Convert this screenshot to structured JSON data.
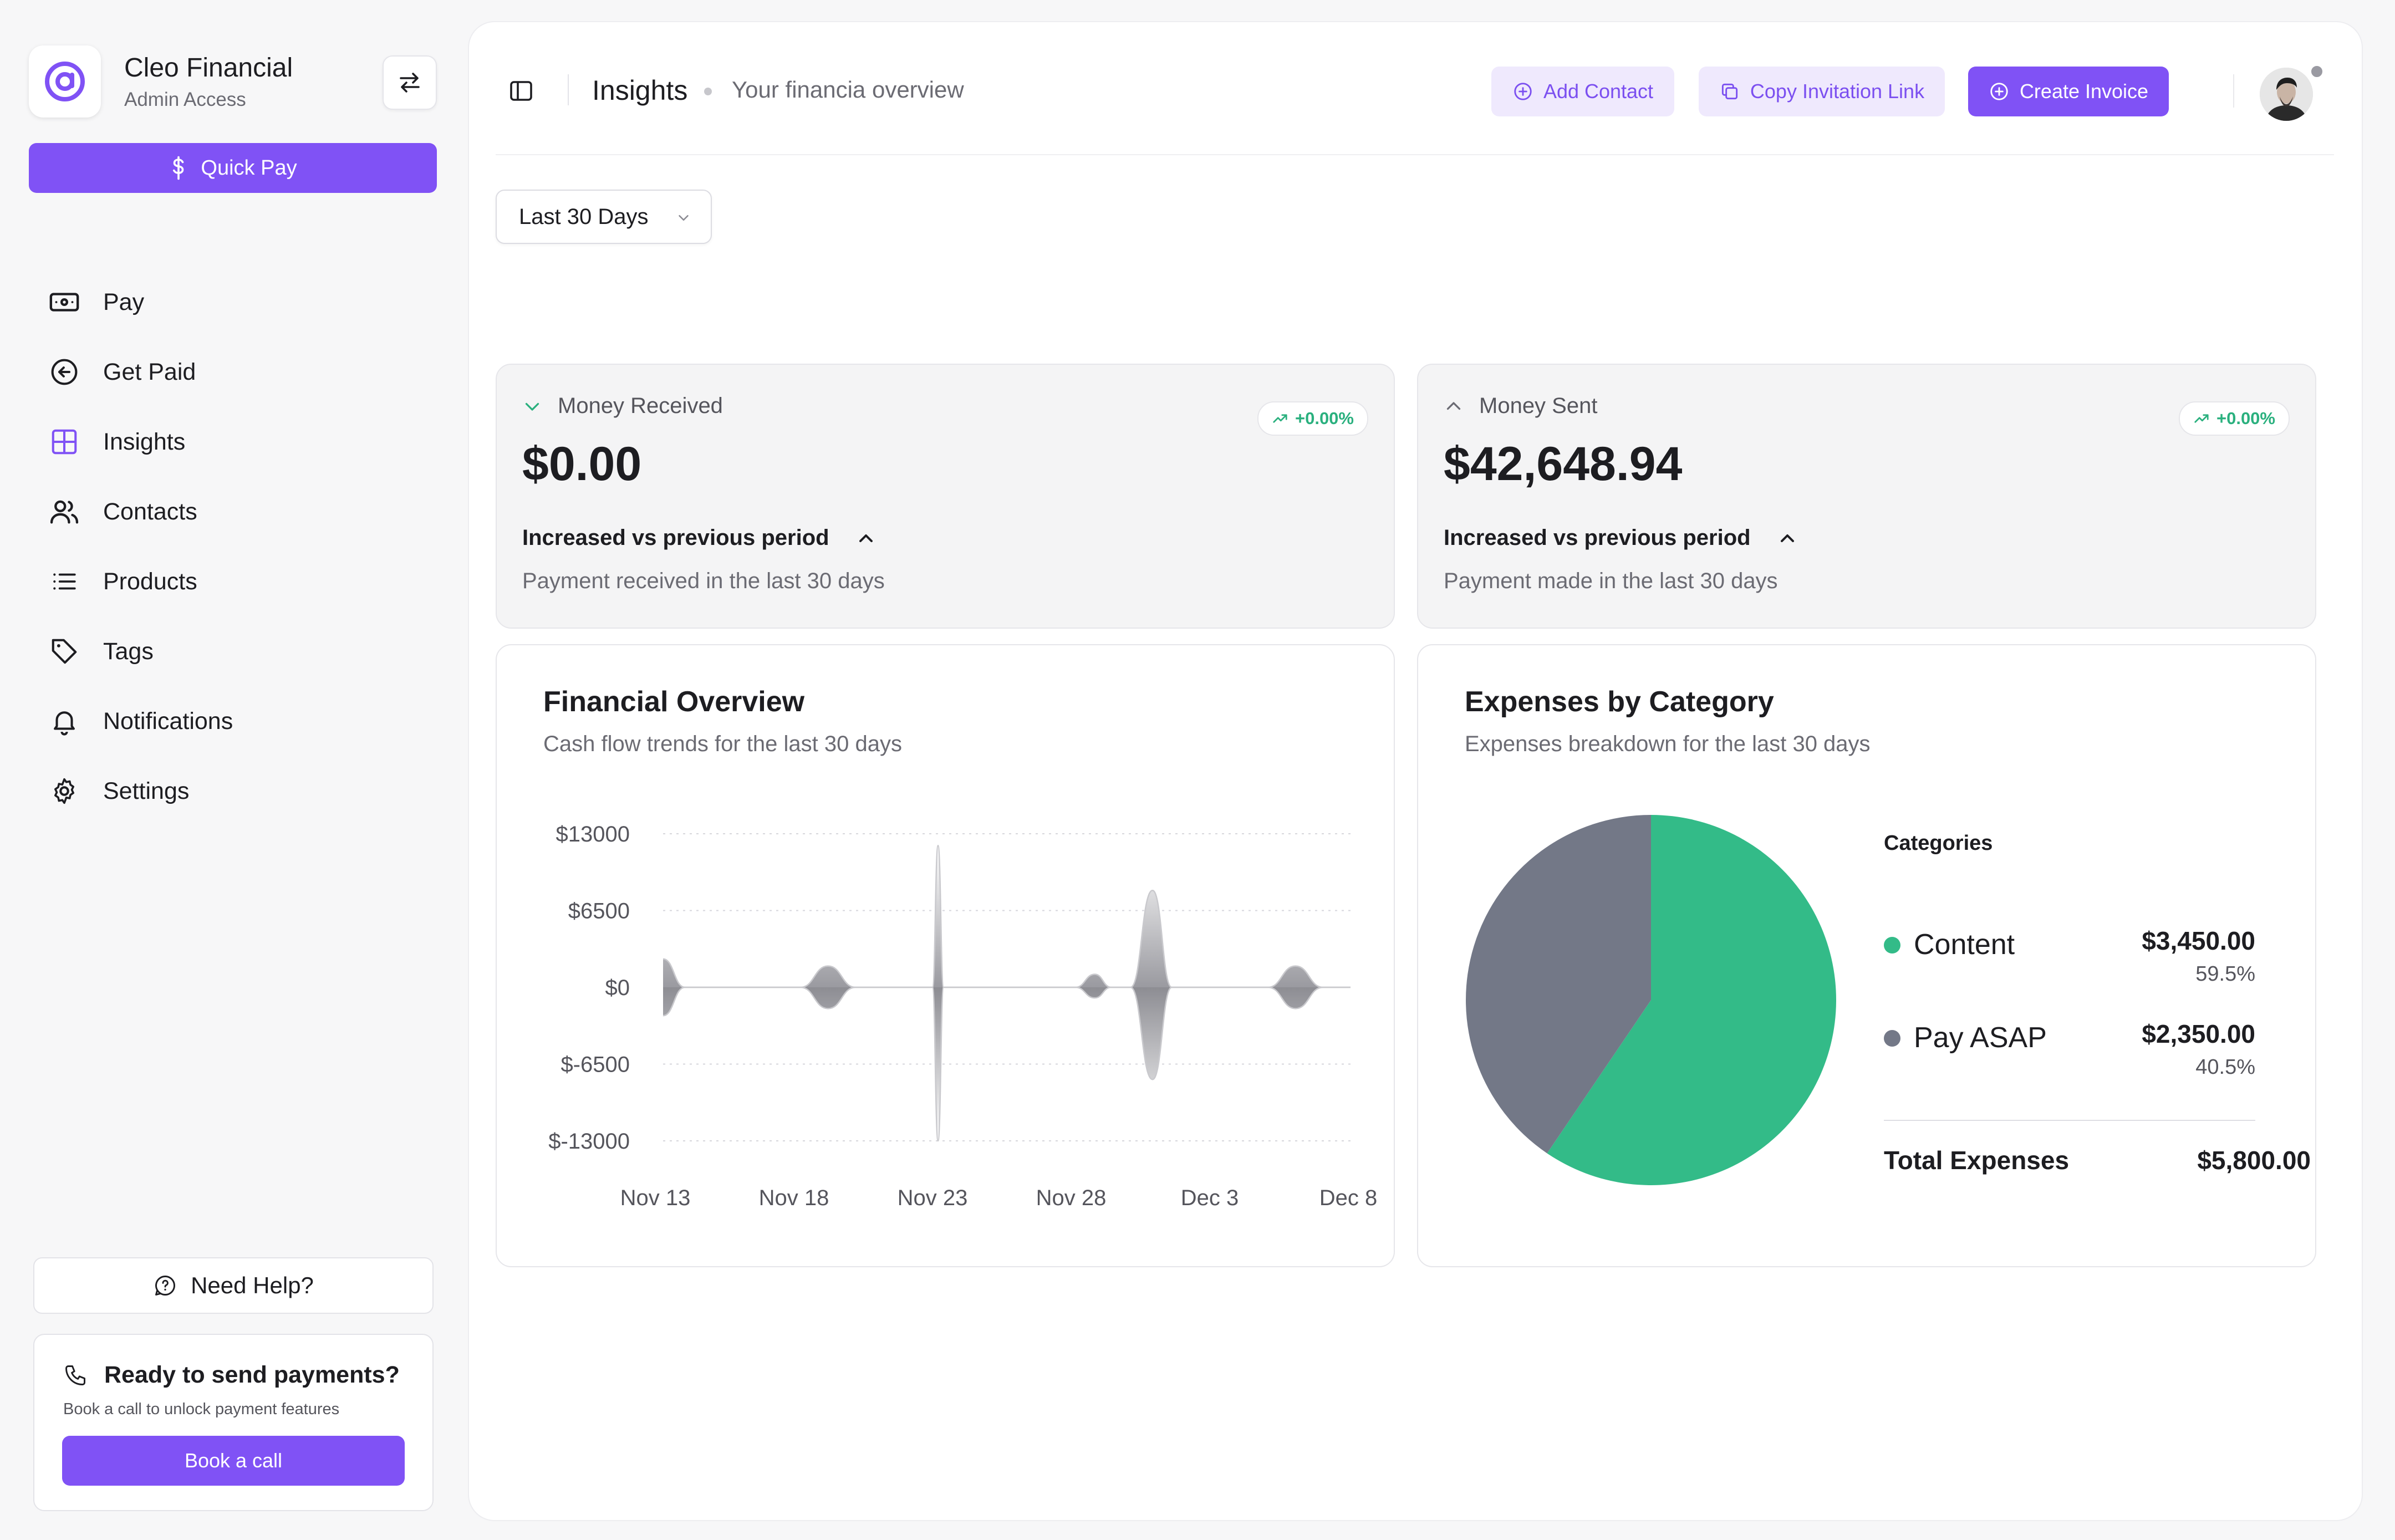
{
  "brand": {
    "name": "Cleo Financial",
    "role": "Admin Access"
  },
  "sidebar": {
    "quick_pay": "Quick Pay",
    "items": [
      {
        "label": "Pay",
        "icon": "banknote-icon"
      },
      {
        "label": "Get Paid",
        "icon": "arrow-left-circle-icon"
      },
      {
        "label": "Insights",
        "icon": "grid-icon",
        "active": true
      },
      {
        "label": "Contacts",
        "icon": "users-icon"
      },
      {
        "label": "Products",
        "icon": "list-icon"
      },
      {
        "label": "Tags",
        "icon": "tag-icon"
      },
      {
        "label": "Notifications",
        "icon": "bell-icon"
      },
      {
        "label": "Settings",
        "icon": "gear-icon"
      }
    ],
    "help": "Need Help?",
    "promo": {
      "title": "Ready to send payments?",
      "subtitle": "Book a call to unlock payment features",
      "button": "Book a call"
    }
  },
  "header": {
    "title": "Insights",
    "subtitle": "Your financia overview",
    "buttons": {
      "add_contact": "Add Contact",
      "copy_link": "Copy Invitation Link",
      "create_invoice": "Create Invoice"
    }
  },
  "filter": {
    "selected": "Last 30 Days"
  },
  "stats": {
    "received": {
      "label": "Money Received",
      "badge": "+0.00%",
      "value": "$0.00",
      "trend": "Increased vs previous period",
      "description": "Payment received in the last 30 days"
    },
    "sent": {
      "label": "Money Sent",
      "badge": "+0.00%",
      "value": "$42,648.94",
      "trend": "Increased vs previous period",
      "description": "Payment made in the last 30 days"
    }
  },
  "overview": {
    "title": "Financial Overview",
    "subtitle": "Cash flow trends for the last 30 days"
  },
  "expenses": {
    "title": "Expenses by Category",
    "subtitle": "Expenses breakdown for the last 30 days",
    "legend_title": "Categories",
    "items": [
      {
        "name": "Content",
        "value": "$3,450.00",
        "pct": "59.5%"
      },
      {
        "name": "Pay ASAP",
        "value": "$2,350.00",
        "pct": "40.5%"
      }
    ],
    "total_label": "Total Expenses",
    "total_value": "$5,800.00"
  },
  "colors": {
    "accent": "#8052f5",
    "green": "#33bb88",
    "gray": "#737887",
    "positive": "#2ab07e"
  },
  "chart_data": [
    {
      "type": "area",
      "title": "Financial Overview",
      "ylim": [
        -13000,
        13000
      ],
      "yticks": [
        "$13000",
        "$6500",
        "$0",
        "$-6500",
        "$-13000"
      ],
      "xticks": [
        "Nov 13",
        "Nov 18",
        "Nov 23",
        "Nov 28",
        "Dec 3",
        "Dec 8"
      ],
      "x_start": 13,
      "x_end": 38,
      "series": [
        {
          "values": [
            {
              "x": 13.0,
              "y": 2400
            },
            {
              "x": 13.8,
              "y": 0
            },
            {
              "x": 18.0,
              "y": 0
            },
            {
              "x": 19.0,
              "y": 1800
            },
            {
              "x": 20.0,
              "y": 0
            },
            {
              "x": 22.8,
              "y": 0
            },
            {
              "x": 23.0,
              "y": 12000
            },
            {
              "x": 23.2,
              "y": 0
            },
            {
              "x": 28.0,
              "y": 0
            },
            {
              "x": 28.7,
              "y": 1100
            },
            {
              "x": 29.3,
              "y": 0
            },
            {
              "x": 30.0,
              "y": 0
            },
            {
              "x": 30.8,
              "y": 8200
            },
            {
              "x": 31.5,
              "y": 0
            },
            {
              "x": 35.0,
              "y": 0
            },
            {
              "x": 36.0,
              "y": 1800
            },
            {
              "x": 37.0,
              "y": 0
            },
            {
              "x": 38.0,
              "y": 0
            }
          ]
        },
        {
          "values": [
            {
              "x": 13.0,
              "y": -2400
            },
            {
              "x": 13.8,
              "y": 0
            },
            {
              "x": 18.0,
              "y": 0
            },
            {
              "x": 19.0,
              "y": -1800
            },
            {
              "x": 20.0,
              "y": 0
            },
            {
              "x": 22.8,
              "y": 0
            },
            {
              "x": 23.0,
              "y": -13000
            },
            {
              "x": 23.2,
              "y": 0
            },
            {
              "x": 28.0,
              "y": 0
            },
            {
              "x": 28.7,
              "y": -900
            },
            {
              "x": 29.3,
              "y": 0
            },
            {
              "x": 30.0,
              "y": 0
            },
            {
              "x": 30.8,
              "y": -7800
            },
            {
              "x": 31.5,
              "y": 0
            },
            {
              "x": 35.0,
              "y": 0
            },
            {
              "x": 36.0,
              "y": -1800
            },
            {
              "x": 37.0,
              "y": 0
            },
            {
              "x": 38.0,
              "y": 0
            }
          ]
        }
      ],
      "grid": true
    },
    {
      "type": "pie",
      "title": "Expenses by Category",
      "slices": [
        {
          "label": "Content",
          "value": 3450,
          "pct": 59.5,
          "color": "#33bb88"
        },
        {
          "label": "Pay ASAP",
          "value": 2350,
          "pct": 40.5,
          "color": "#737887"
        }
      ]
    }
  ]
}
